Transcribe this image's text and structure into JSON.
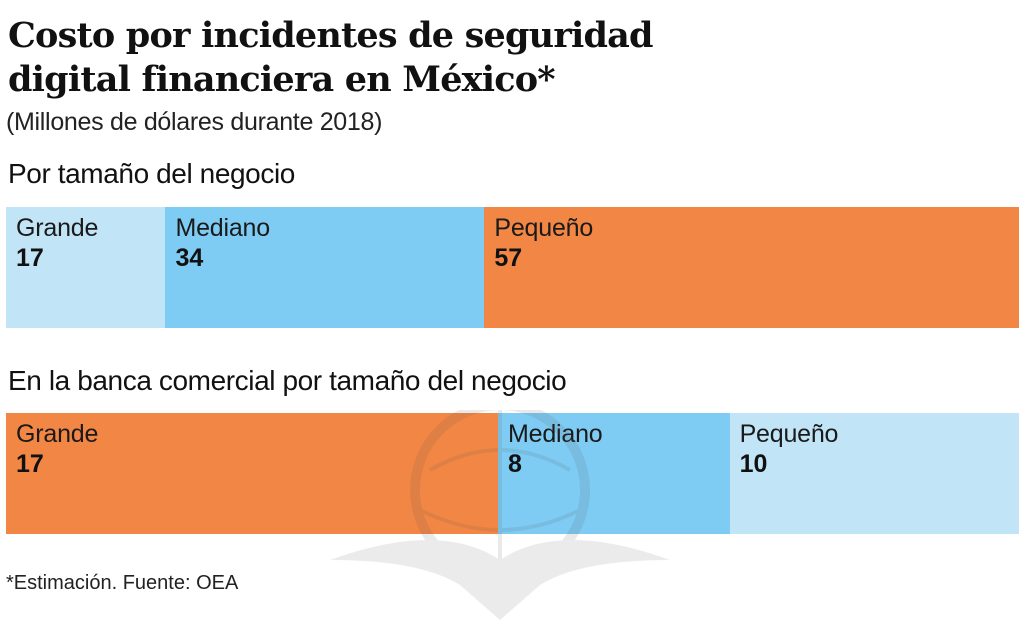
{
  "header": {
    "title_line1": "Costo por incidentes de seguridad",
    "title_line2": "digital financiera en México*",
    "subtitle": "(Millones de dólares durante 2018)"
  },
  "footnote": "*Estimación. Fuente: OEA",
  "chart_data": [
    {
      "type": "bar",
      "orientation": "horizontal-stacked",
      "title": "Por tamaño del negocio",
      "unit": "Millones de dólares",
      "categories": [
        "Grande",
        "Mediano",
        "Pequeño"
      ],
      "values": [
        17,
        34,
        57
      ],
      "colors": [
        "#c2e4f7",
        "#7ecbf3",
        "#f28644"
      ]
    },
    {
      "type": "bar",
      "orientation": "horizontal-stacked",
      "title": "En la banca comercial por tamaño del negocio",
      "unit": "Millones de dólares",
      "categories": [
        "Grande",
        "Mediano",
        "Pequeño"
      ],
      "values": [
        17,
        8,
        10
      ],
      "colors": [
        "#f28644",
        "#7ecbf3",
        "#c2e4f7"
      ]
    }
  ]
}
